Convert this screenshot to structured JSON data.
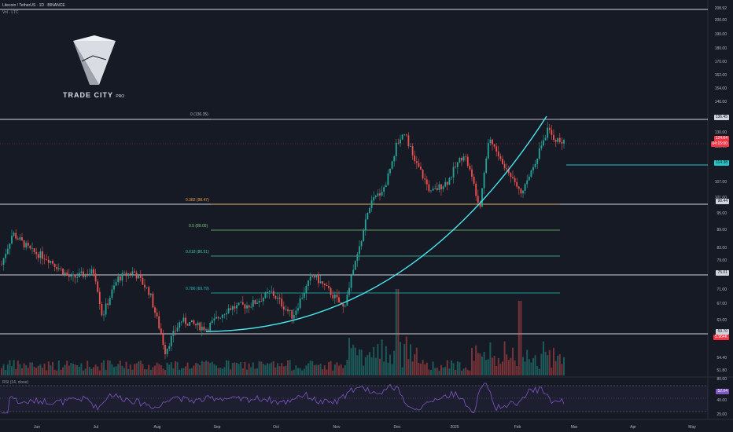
{
  "header": {
    "title": "Litecoin / TetherUS · 1D · BINANCE",
    "sub": "Vol · LTC"
  },
  "logo": {
    "brand": "TRADE CITY",
    "suffix": "PRO"
  },
  "rsi": {
    "label": "RSI (14, close)",
    "value": "52.04"
  },
  "fib_labels": [
    {
      "text": "0 (136.35)",
      "color": "#b2b5be"
    },
    {
      "text": "0.382 (98.47)",
      "color": "#f0a04b"
    },
    {
      "text": "0.5 (89.05)",
      "color": "#7ec87a"
    },
    {
      "text": "0.618 (80.51)",
      "color": "#3cc8a0"
    },
    {
      "text": "0.786 (69.79)",
      "color": "#22c0c0"
    }
  ],
  "price_axis": [
    "208.92",
    "200.00",
    "190.00",
    "180.00",
    "170.00",
    "162.00",
    "154.00",
    "146.00",
    "138.00",
    "130.00",
    "122.00",
    "114.00",
    "107.00",
    "101.00",
    "95.00",
    "89.00",
    "83.00",
    "79.00",
    "75.00",
    "71.00",
    "67.00",
    "63.00",
    "59.00",
    "54.40",
    "51.80"
  ],
  "rsi_axis": [
    "80.00",
    "40.00",
    "25.00"
  ],
  "badges": [
    {
      "text": "136.45",
      "bg": "#d1d4dc",
      "fg": "#131722"
    },
    {
      "text": "124.64",
      "bg": "#f23645",
      "fg": "#ffffff"
    },
    {
      "text": "04:15:00",
      "bg": "#f23645",
      "fg": "#ffffff"
    },
    {
      "text": "114.38",
      "bg": "#26c6c6",
      "fg": "#131722"
    },
    {
      "text": "98.44",
      "bg": "#d1d4dc",
      "fg": "#131722"
    },
    {
      "text": "75.01",
      "bg": "#d1d4dc",
      "fg": "#131722"
    },
    {
      "text": "59.70",
      "bg": "#d1d4dc",
      "fg": "#131722"
    },
    {
      "text": "5.964K",
      "bg": "#f23645",
      "fg": "#ffffff"
    },
    {
      "text": "52.04",
      "bg": "#7e57c2",
      "fg": "#ffffff"
    }
  ],
  "time_axis": [
    "Jun",
    "Jul",
    "Aug",
    "Sep",
    "Oct",
    "Nov",
    "Dec",
    "2025",
    "Feb",
    "Mar",
    "Apr",
    "May"
  ],
  "colors": {
    "up": "#26a69a",
    "down": "#ef5350",
    "bg": "#161a25"
  },
  "chart_data": {
    "type": "candlestick",
    "symbol": "LTCUSDT",
    "timeframe": "1D",
    "ylim": [
      50,
      210
    ],
    "levels": [
      136.45,
      98.44,
      75.01,
      59.7,
      114.38
    ],
    "fib": [
      136.35,
      98.47,
      89.05,
      80.51,
      69.79
    ],
    "last_price": 124.64,
    "anchors": [
      {
        "m": "May",
        "price": 78
      },
      {
        "m": "Jun",
        "price": 86
      },
      {
        "m": "Jul",
        "price": 76
      },
      {
        "m": "Aug",
        "price": 62
      },
      {
        "m": "Sep",
        "price": 68
      },
      {
        "m": "Oct",
        "price": 70
      },
      {
        "m": "Nov",
        "price": 72
      },
      {
        "m": "Dec",
        "price": 130
      },
      {
        "m": "2025",
        "price": 104
      },
      {
        "m": "Feb",
        "price": 108
      },
      {
        "m": "Feb end",
        "price": 124.64
      }
    ]
  }
}
